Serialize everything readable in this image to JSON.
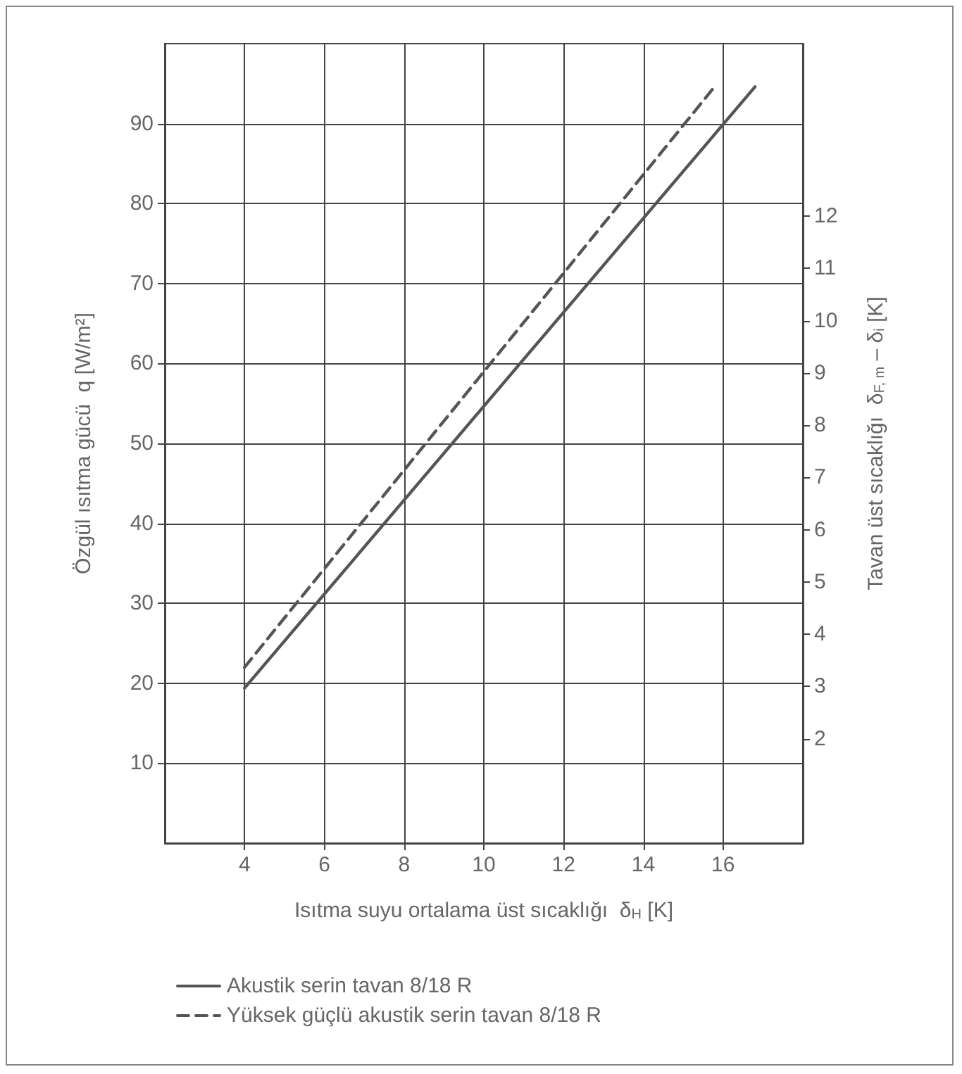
{
  "chart_data": {
    "type": "line",
    "xlabel": "Isıtma suyu ortalama üst sıcaklığı  δ$_{H}$ [K]",
    "ylabel": "Özgül ısıtma gücü  q [W/m²]",
    "y2label": "Tavan üst sıcaklığı  δ$_{F, m}$ – δ$_{i}$ [K]",
    "xlim": [
      2,
      18
    ],
    "xticks": [
      4,
      6,
      8,
      10,
      12,
      14,
      16
    ],
    "ylim": [
      0,
      100
    ],
    "yticks": [
      10,
      20,
      30,
      40,
      50,
      60,
      70,
      80,
      90
    ],
    "y2lim": [
      0,
      15.3
    ],
    "y2ticks": [
      2,
      3,
      4,
      5,
      6,
      7,
      8,
      9,
      10,
      11,
      12
    ],
    "grid": true,
    "legend": "bottom left",
    "marker": "none",
    "series": [
      {
        "name": "Akustik serin tavan 8/18 R",
        "color": "#555555",
        "line_style": "solid",
        "x": [
          4,
          16.8
        ],
        "values": [
          19.4,
          94.6
        ]
      },
      {
        "name": "Yüksek güçlü akustik serin tavan 8/18 R",
        "color": "#555555",
        "line_style": "dashed",
        "x": [
          4,
          15.8
        ],
        "values": [
          22,
          94.7
        ]
      }
    ]
  }
}
